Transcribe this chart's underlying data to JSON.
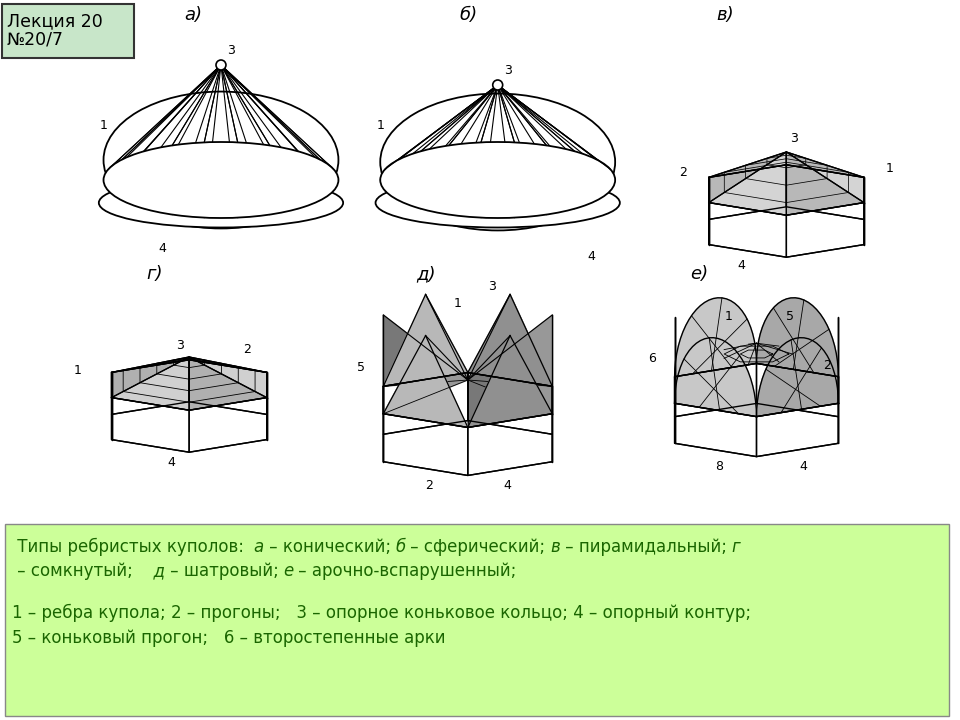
{
  "title_line1": "Лекция 20",
  "title_line2": "№20/7",
  "labels_row1": [
    "а)",
    "б)",
    "в)"
  ],
  "labels_row2": [
    "г)",
    "д)",
    "е)"
  ],
  "caption_line1_parts": [
    [
      " Типы ребристых куполов:  ",
      false
    ],
    [
      "а",
      true
    ],
    [
      " – конический; ",
      false
    ],
    [
      "б",
      true
    ],
    [
      " – сферический; ",
      false
    ],
    [
      "в",
      true
    ],
    [
      " – пирамидальный; ",
      false
    ],
    [
      "г",
      true
    ]
  ],
  "caption_line2_parts": [
    [
      " – сомкнутый;  ",
      false
    ],
    [
      "  д",
      true
    ],
    [
      " – шатровый; ",
      false
    ],
    [
      "е",
      true
    ],
    [
      " – арочно-вспарушенный;",
      false
    ]
  ],
  "caption_line3": "1 – ребра купола; 2 – прогоны;   3 – опорное коньковое кольцо; 4 – опорный контур;",
  "caption_line4": "5 – коньковый прогон;   6 – второстепенные арки",
  "bg_color": "#ffffff",
  "box_bg": "#ccff99",
  "title_bg": "#c8e6c9"
}
